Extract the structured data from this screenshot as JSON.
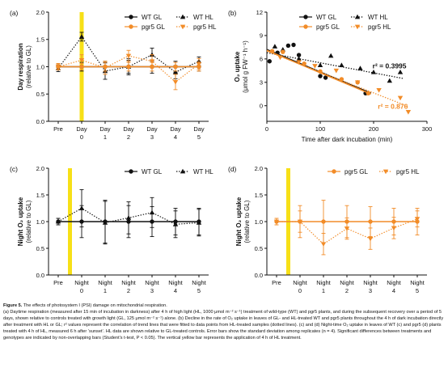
{
  "charts": [
    {
      "panel_label": "(a)",
      "type": "line",
      "ylabel_lines": [
        "Day respiration",
        "(relative to GL)"
      ],
      "ylim": [
        0.0,
        2.0
      ],
      "yticks": [
        0.0,
        0.5,
        1.0,
        1.5,
        2.0
      ],
      "categories": [
        [
          "Pre",
          ""
        ],
        [
          "Day",
          "0"
        ],
        [
          "Day",
          "1"
        ],
        [
          "Day",
          "2"
        ],
        [
          "Day",
          "3"
        ],
        [
          "Day",
          "4"
        ],
        [
          "Day",
          "5"
        ]
      ],
      "yellow_bar_at": 1,
      "legend": [
        "WT GL",
        "WT HL",
        "pgr5 GL",
        "pgr5 HL"
      ],
      "series": [
        {
          "name": "WT GL",
          "color": "#111111",
          "marker": "circle",
          "line": "solid",
          "values": [
            1.0,
            1.0,
            1.0,
            1.0,
            1.0,
            1.0,
            1.0
          ],
          "errors": [
            0.05,
            0.08,
            0.1,
            0.12,
            0.12,
            0.1,
            0.08
          ]
        },
        {
          "name": "WT HL",
          "color": "#111111",
          "marker": "triangle-up",
          "line": "dotted",
          "values": [
            0.97,
            1.55,
            0.92,
            1.0,
            1.22,
            0.9,
            1.1
          ],
          "errors": [
            0.06,
            0.08,
            0.15,
            0.15,
            0.12,
            0.12,
            0.08
          ]
        },
        {
          "name": "pgr5 GL",
          "color": "#f28c28",
          "marker": "circle",
          "line": "solid",
          "values": [
            1.0,
            1.0,
            1.0,
            1.0,
            1.0,
            1.0,
            1.0
          ],
          "errors": [
            0.05,
            0.06,
            0.08,
            0.08,
            0.08,
            0.08,
            0.08
          ]
        },
        {
          "name": "pgr5 HL",
          "color": "#f28c28",
          "marker": "triangle-down",
          "line": "dotted",
          "values": [
            1.0,
            1.12,
            0.98,
            1.2,
            1.1,
            0.72,
            1.05
          ],
          "errors": [
            0.06,
            0.1,
            0.12,
            0.1,
            0.12,
            0.14,
            0.1
          ]
        }
      ]
    },
    {
      "panel_label": "(b)",
      "type": "scatter",
      "ylabel_lines": [
        "O₂ uptake",
        "(μmol g FW⁻¹ h⁻¹)"
      ],
      "xlabel": "Time after dark incubation  (min)",
      "xlim": [
        0,
        300
      ],
      "xticks": [
        0,
        100,
        200,
        300
      ],
      "ylim": [
        -2,
        12
      ],
      "yticks": [
        0,
        3,
        6,
        9,
        12
      ],
      "legend": [
        "WT GL",
        "WT HL",
        "pgr5 GL",
        "pgr5 HL"
      ],
      "annotations": [
        {
          "text": "r² = 0.3995",
          "color": "#111111",
          "x": 198,
          "y": 4.8
        },
        {
          "text": "r² = 0.876",
          "color": "#f28c28",
          "x": 208,
          "y": -0.4
        }
      ],
      "series": [
        {
          "name": "WT GL",
          "color": "#111111",
          "marker": "circle",
          "points": [
            [
              5,
              5.7
            ],
            [
              20,
              6.8
            ],
            [
              40,
              7.7
            ],
            [
              50,
              7.8
            ],
            [
              60,
              6.5
            ],
            [
              100,
              3.8
            ],
            [
              110,
              3.6
            ],
            [
              185,
              1.6
            ]
          ],
          "trend": {
            "x": [
              0,
              195
            ],
            "y": [
              7.2,
              1.6
            ],
            "line": "solid"
          }
        },
        {
          "name": "WT HL",
          "color": "#111111",
          "marker": "triangle-up",
          "points": [
            [
              15,
              7.6
            ],
            [
              30,
              7.2
            ],
            [
              60,
              6.0
            ],
            [
              100,
              5.2
            ],
            [
              120,
              6.4
            ],
            [
              140,
              5.2
            ],
            [
              175,
              4.8
            ],
            [
              200,
              4.3
            ],
            [
              230,
              3.2
            ],
            [
              250,
              4.3
            ]
          ],
          "trend": {
            "x": [
              0,
              255
            ],
            "y": [
              6.8,
              3.5
            ],
            "line": "dotted"
          }
        },
        {
          "name": "pgr5 GL",
          "color": "#f28c28",
          "marker": "circle",
          "points": [
            [
              10,
              7.0
            ],
            [
              30,
              6.9
            ],
            [
              70,
              5.4
            ],
            [
              100,
              4.4
            ],
            [
              140,
              3.4
            ],
            [
              170,
              3.0
            ],
            [
              190,
              1.6
            ]
          ],
          "trend": {
            "x": [
              0,
              195
            ],
            "y": [
              7.1,
              1.5
            ],
            "line": "solid"
          }
        },
        {
          "name": "pgr5 HL",
          "color": "#f28c28",
          "marker": "triangle-down",
          "points": [
            [
              25,
              6.2
            ],
            [
              60,
              5.6
            ],
            [
              90,
              5.1
            ],
            [
              130,
              4.5
            ],
            [
              170,
              3.0
            ],
            [
              210,
              2.0
            ],
            [
              250,
              1.0
            ],
            [
              265,
              -0.8
            ]
          ],
          "trend": {
            "x": [
              0,
              265
            ],
            "y": [
              7.0,
              -0.1
            ],
            "line": "dotted"
          }
        }
      ]
    },
    {
      "panel_label": "(c)",
      "type": "line",
      "ylabel_lines": [
        "Night O₂ uptake",
        "(relative to GL)"
      ],
      "ylim": [
        0.0,
        2.0
      ],
      "yticks": [
        0.0,
        0.5,
        1.0,
        1.5,
        2.0
      ],
      "categories": [
        [
          "Pre",
          ""
        ],
        [
          "Night",
          "0"
        ],
        [
          "Night",
          "1"
        ],
        [
          "Night",
          "2"
        ],
        [
          "Night",
          "3"
        ],
        [
          "Night",
          "4"
        ],
        [
          "Night",
          "5"
        ]
      ],
      "yellow_bar_at": 0.5,
      "legend": [
        "WT GL",
        "WT HL"
      ],
      "series": [
        {
          "name": "WT GL",
          "color": "#111111",
          "marker": "circle",
          "line": "solid",
          "values": [
            1.0,
            1.0,
            1.0,
            1.0,
            1.0,
            1.0,
            1.0
          ],
          "errors": [
            0.06,
            0.3,
            0.4,
            0.3,
            0.28,
            0.25,
            0.25
          ]
        },
        {
          "name": "WT HL",
          "color": "#111111",
          "marker": "triangle-up",
          "line": "dotted",
          "values": [
            1.0,
            1.25,
            0.98,
            1.07,
            1.17,
            0.95,
            0.98
          ],
          "errors": [
            0.06,
            0.35,
            0.4,
            0.3,
            0.28,
            0.25,
            0.25
          ]
        }
      ]
    },
    {
      "panel_label": "(d)",
      "type": "line",
      "ylabel_lines": [
        "Night O₂ uptake",
        "(relative to GL)"
      ],
      "ylim": [
        0.0,
        2.0
      ],
      "yticks": [
        0.0,
        0.5,
        1.0,
        1.5,
        2.0
      ],
      "categories": [
        [
          "Pre",
          ""
        ],
        [
          "Night",
          "0"
        ],
        [
          "Night",
          "1"
        ],
        [
          "Night",
          "2"
        ],
        [
          "Night",
          "3"
        ],
        [
          "Night",
          "4"
        ],
        [
          "Night",
          "5"
        ]
      ],
      "yellow_bar_at": 0.5,
      "legend": [
        "pgr5 GL",
        "pgr5 HL"
      ],
      "series": [
        {
          "name": "pgr5 GL",
          "color": "#f28c28",
          "marker": "circle",
          "line": "solid",
          "values": [
            1.0,
            1.0,
            1.0,
            1.0,
            1.0,
            1.0,
            1.0
          ],
          "errors": [
            0.06,
            0.3,
            0.4,
            0.3,
            0.28,
            0.25,
            0.25
          ]
        },
        {
          "name": "pgr5 HL",
          "color": "#f28c28",
          "marker": "triangle-down",
          "line": "dotted",
          "values": [
            1.0,
            1.0,
            0.58,
            0.87,
            0.68,
            0.88,
            1.05
          ],
          "errors": [
            0.06,
            0.2,
            0.2,
            0.2,
            0.2,
            0.2,
            0.15
          ]
        }
      ]
    }
  ],
  "caption": {
    "title": "Figure 5.",
    "title_text": "The effects of photosystem I (PSI) damage on mitochondrial respiration.",
    "body_a": "(a) Daytime respiration (measured after 15 min of incubation in darkness) after 4 h of high light (HL, 1000 μmol m⁻² s⁻¹) treatment of wild-type (WT) and pgr5 plants, and during the subsequent recovery over a period of 5 days, shown relative to controls treated with growth light (GL, 125 μmol m⁻² s⁻¹) alone. (b) Decline in the rate of O₂ uptake in leaves of GL- and HL-treated WT and pgr5 plants throughout the 4 h of dark incubation directly after treatment with HL or GL; r² values represent the correlation of trend lines that were fitted to data points from HL-treated samples (dotted lines). (c) and (d) Night-time O₂ uptake in leaves of WT (c) and pgr5 (d) plants treated with 4 h of HL, measured 6 h after ‘sunset’. HL data are shown relative to GL-treated controls. Error bars show the standard deviation among replicates (n = 4). Significant differences between treatments and genotypes are indicated by non-overlapping bars (Student’s t-test, P < 0.05). The vertical yellow bar represents the application of 4 h of HL treatment."
  },
  "colors": {
    "black": "#111111",
    "orange": "#f28c28",
    "yellow_bar": "#f7e017"
  }
}
